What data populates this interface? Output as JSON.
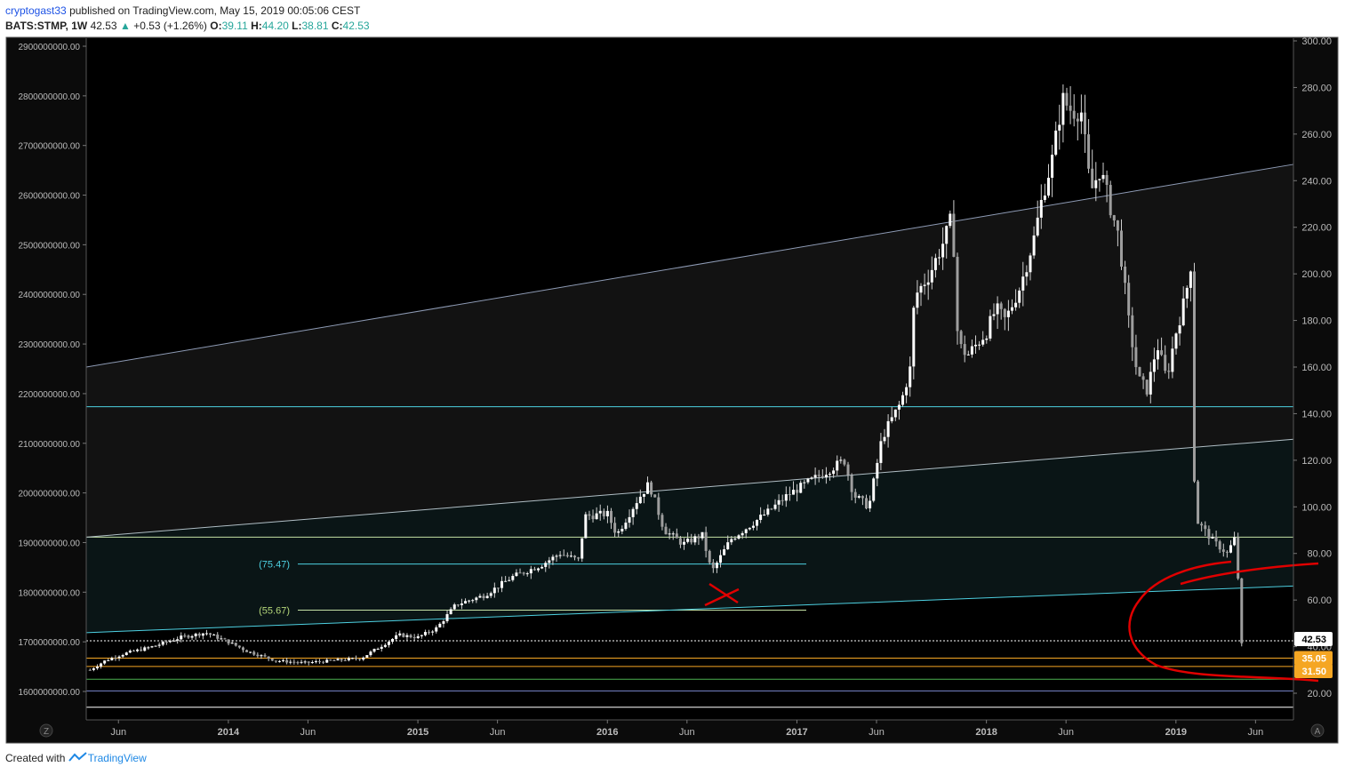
{
  "header": {
    "author": "cryptogast33",
    "published_text": "published on TradingView.com, May 15, 2019 00:05:06 CEST",
    "symbol": "BATS:STMP, 1W",
    "last": "42.53",
    "change": "+0.53 (+1.26%)",
    "o_label": "O:",
    "o_value": "39.11",
    "h_label": "H:",
    "h_value": "44.20",
    "l_label": "L:",
    "l_value": "38.81",
    "c_label": "C:",
    "c_value": "42.53"
  },
  "footer": {
    "created_with": "Created with",
    "brand": "TradingView"
  },
  "chart_data": {
    "type": "candlestick",
    "title": "",
    "xlabel": "",
    "ylabel": "",
    "right_axis": {
      "range": [
        10,
        300
      ],
      "ticks": [
        "300.00",
        "280.00",
        "260.00",
        "240.00",
        "220.00",
        "200.00",
        "180.00",
        "160.00",
        "140.00",
        "120.00",
        "100.00",
        "80.00",
        "60.00",
        "40.00",
        "20.00"
      ]
    },
    "left_axis": {
      "ticks": [
        "2900000000.00",
        "2800000000.00",
        "2700000000.00",
        "2600000000.00",
        "2500000000.00",
        "2400000000.00",
        "2300000000.00",
        "2200000000.00",
        "2100000000.00",
        "2000000000.00",
        "1900000000.00",
        "1800000000.00",
        "1700000000.00",
        "1600000000.00"
      ]
    },
    "x_axis": {
      "ticks": [
        "Jun",
        "2014",
        "Jun",
        "2015",
        "Jun",
        "2016",
        "Jun",
        "2017",
        "Jun",
        "2018",
        "Jun",
        "2019",
        "Jun"
      ],
      "tick_dates": [
        2013.42,
        2014.0,
        2014.42,
        2015.0,
        2015.42,
        2016.0,
        2016.42,
        2017.0,
        2017.42,
        2018.0,
        2018.42,
        2019.0,
        2019.42
      ],
      "range": [
        2013.25,
        2019.62
      ]
    },
    "price_labels": [
      {
        "text": "42.53",
        "value": 42.53,
        "color": "#ffffff"
      },
      {
        "text": "35.05",
        "value": 35.05,
        "color": "#f5a623"
      },
      {
        "text": "31.50",
        "value": 31.5,
        "color": "#f5a623"
      }
    ],
    "level_labels": [
      {
        "text": "(75.47)",
        "value": 75.47,
        "color": "#4dd0e1"
      },
      {
        "text": "(55.67)",
        "value": 55.67,
        "color": "#b5d77a"
      }
    ],
    "price_path": [
      [
        2013.27,
        30
      ],
      [
        2013.35,
        34
      ],
      [
        2013.45,
        37
      ],
      [
        2013.6,
        40
      ],
      [
        2013.75,
        44
      ],
      [
        2013.88,
        46
      ],
      [
        2014.0,
        42
      ],
      [
        2014.1,
        38
      ],
      [
        2014.25,
        34
      ],
      [
        2014.4,
        33
      ],
      [
        2014.55,
        34
      ],
      [
        2014.7,
        35
      ],
      [
        2014.8,
        40
      ],
      [
        2014.9,
        45
      ],
      [
        2015.0,
        44
      ],
      [
        2015.1,
        48
      ],
      [
        2015.2,
        58
      ],
      [
        2015.35,
        62
      ],
      [
        2015.5,
        70
      ],
      [
        2015.65,
        75
      ],
      [
        2015.75,
        80
      ],
      [
        2015.85,
        77
      ],
      [
        2015.88,
        96
      ],
      [
        2016.0,
        97
      ],
      [
        2016.05,
        88
      ],
      [
        2016.15,
        102
      ],
      [
        2016.22,
        110
      ],
      [
        2016.3,
        90
      ],
      [
        2016.4,
        84
      ],
      [
        2016.5,
        88
      ],
      [
        2016.55,
        72
      ],
      [
        2016.65,
        86
      ],
      [
        2016.75,
        92
      ],
      [
        2016.85,
        98
      ],
      [
        2016.95,
        105
      ],
      [
        2017.05,
        110
      ],
      [
        2017.15,
        115
      ],
      [
        2017.25,
        120
      ],
      [
        2017.3,
        105
      ],
      [
        2017.38,
        100
      ],
      [
        2017.45,
        130
      ],
      [
        2017.55,
        145
      ],
      [
        2017.6,
        160
      ],
      [
        2017.62,
        190
      ],
      [
        2017.7,
        200
      ],
      [
        2017.78,
        215
      ],
      [
        2017.82,
        225
      ],
      [
        2017.85,
        170
      ],
      [
        2017.9,
        165
      ],
      [
        2018.0,
        175
      ],
      [
        2018.05,
        185
      ],
      [
        2018.1,
        180
      ],
      [
        2018.18,
        195
      ],
      [
        2018.25,
        215
      ],
      [
        2018.3,
        235
      ],
      [
        2018.35,
        250
      ],
      [
        2018.4,
        275
      ],
      [
        2018.45,
        270
      ],
      [
        2018.5,
        270
      ],
      [
        2018.55,
        235
      ],
      [
        2018.6,
        245
      ],
      [
        2018.65,
        230
      ],
      [
        2018.7,
        215
      ],
      [
        2018.75,
        180
      ],
      [
        2018.8,
        155
      ],
      [
        2018.85,
        150
      ],
      [
        2018.9,
        170
      ],
      [
        2018.95,
        155
      ],
      [
        2019.0,
        175
      ],
      [
        2019.05,
        190
      ],
      [
        2019.08,
        205
      ],
      [
        2019.1,
        95
      ],
      [
        2019.15,
        90
      ],
      [
        2019.2,
        85
      ],
      [
        2019.27,
        80
      ],
      [
        2019.32,
        88
      ],
      [
        2019.34,
        40
      ],
      [
        2019.36,
        42.53
      ]
    ],
    "levels": [
      {
        "value": 143,
        "color": "#4dd0e1"
      },
      {
        "value": 87,
        "color": "#c5e1a5"
      },
      {
        "value": 75.47,
        "color": "#4dd0e1"
      },
      {
        "value": 55.67,
        "color": "#c5e1a5"
      },
      {
        "value": 42.53,
        "color": "#ffffff"
      },
      {
        "value": 35.05,
        "color": "#f5a623"
      },
      {
        "value": 31.5,
        "color": "#f5a623"
      },
      {
        "value": 26,
        "color": "#4caf50"
      },
      {
        "value": 21,
        "color": "#7986cb"
      },
      {
        "value": 14,
        "color": "#ffffff"
      }
    ],
    "channel_lines": [
      {
        "from": [
          2013.25,
          160
        ],
        "to": [
          2019.62,
          247
        ],
        "color": "#8e9bb5"
      },
      {
        "from": [
          2013.25,
          87
        ],
        "to": [
          2019.62,
          129
        ],
        "color": "#b0bec5"
      },
      {
        "from": [
          2013.25,
          46
        ],
        "to": [
          2019.62,
          66
        ],
        "color": "#4dd0e1"
      }
    ],
    "colors": {
      "background": "#000000",
      "candle": "#ffffff",
      "annotation": "#e00000",
      "axis_bg": "#0b0b0b"
    }
  }
}
